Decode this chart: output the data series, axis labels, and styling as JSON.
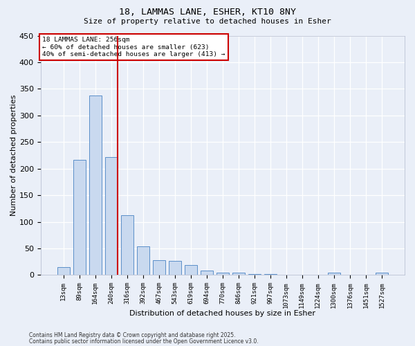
{
  "title1": "18, LAMMAS LANE, ESHER, KT10 8NY",
  "title2": "Size of property relative to detached houses in Esher",
  "xlabel": "Distribution of detached houses by size in Esher",
  "ylabel": "Number of detached properties",
  "categories": [
    "13sqm",
    "89sqm",
    "164sqm",
    "240sqm",
    "316sqm",
    "392sqm",
    "467sqm",
    "543sqm",
    "619sqm",
    "694sqm",
    "770sqm",
    "846sqm",
    "921sqm",
    "997sqm",
    "1073sqm",
    "1149sqm",
    "1224sqm",
    "1300sqm",
    "1376sqm",
    "1451sqm",
    "1527sqm"
  ],
  "values": [
    15,
    216,
    338,
    222,
    112,
    54,
    28,
    26,
    19,
    8,
    5,
    4,
    2,
    2,
    1,
    1,
    1,
    4,
    1,
    1,
    4
  ],
  "bar_color": "#c9d9ef",
  "bar_edge_color": "#5b8fc9",
  "vline_color": "#cc0000",
  "vline_x_idx": 2,
  "annotation_title": "18 LAMMAS LANE: 256sqm",
  "annotation_line1": "← 60% of detached houses are smaller (623)",
  "annotation_line2": "40% of semi-detached houses are larger (413) →",
  "ylim": [
    0,
    450
  ],
  "yticks": [
    0,
    50,
    100,
    150,
    200,
    250,
    300,
    350,
    400,
    450
  ],
  "bg_color": "#eaeff8",
  "footer1": "Contains HM Land Registry data © Crown copyright and database right 2025.",
  "footer2": "Contains public sector information licensed under the Open Government Licence v3.0."
}
